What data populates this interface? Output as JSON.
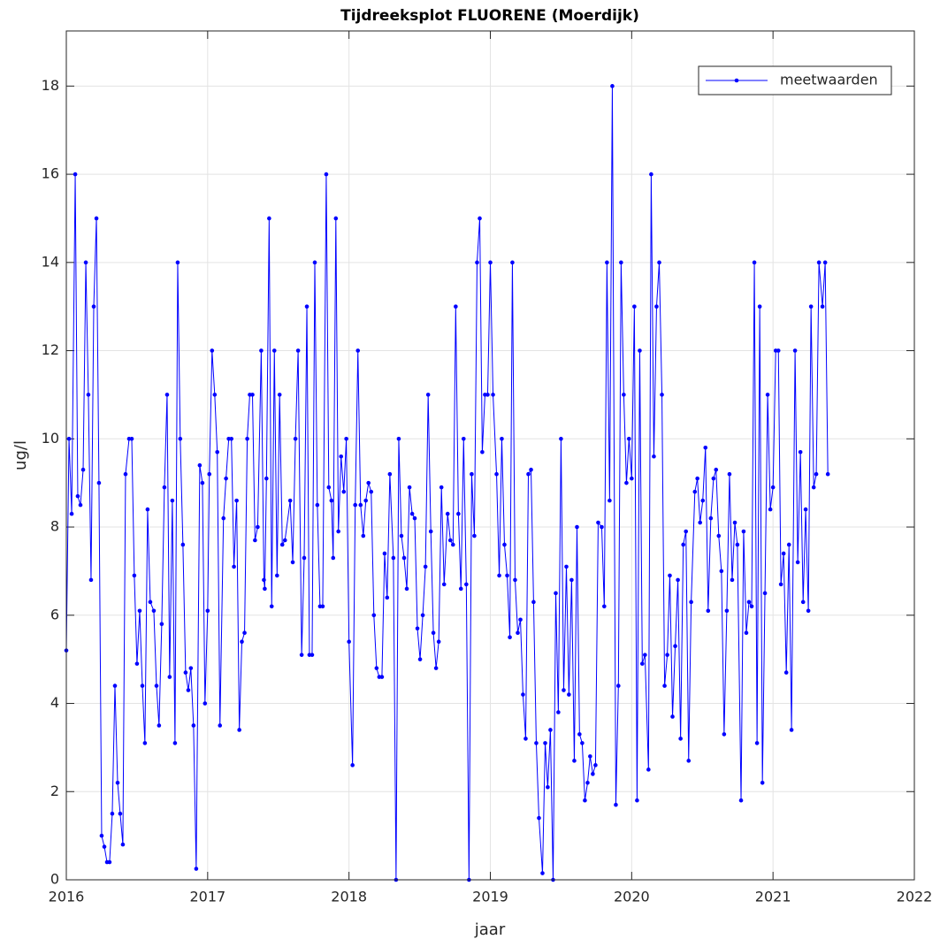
{
  "chart_data": {
    "type": "line",
    "title": "Tijdreeksplot FLUORENE (Moerdijk)",
    "x_label": "jaar",
    "y_label": "ug/l",
    "xlim": [
      2016,
      2022
    ],
    "xticks": [
      2016,
      2017,
      2018,
      2019,
      2020,
      2021,
      2022
    ],
    "ylim": [
      0,
      19.25
    ],
    "yticks": [
      0,
      2,
      4,
      6,
      8,
      10,
      12,
      14,
      16,
      18
    ],
    "grid": true,
    "legend": "top-right",
    "x": [
      2016,
      2016.019,
      2016.038,
      2016.063,
      2016.081,
      2016.1,
      2016.119,
      2016.138,
      2016.156,
      2016.175,
      2016.194,
      2016.213,
      2016.231,
      2016.25,
      2016.269,
      2016.288,
      2016.306,
      2016.325,
      2016.344,
      2016.363,
      2016.381,
      2016.4,
      2016.419,
      2016.444,
      2016.463,
      2016.481,
      2016.5,
      2016.519,
      2016.538,
      2016.556,
      2016.575,
      2016.594,
      2016.619,
      2016.638,
      2016.656,
      2016.675,
      2016.694,
      2016.713,
      2016.731,
      2016.75,
      2016.769,
      2016.788,
      2016.806,
      2016.825,
      2016.844,
      2016.863,
      2016.881,
      2016.9,
      2016.919,
      2016.944,
      2016.963,
      2016.981,
      2017,
      2017.012,
      2017.031,
      2017.05,
      2017.068,
      2017.087,
      2017.112,
      2017.13,
      2017.149,
      2017.168,
      2017.186,
      2017.205,
      2017.224,
      2017.242,
      2017.261,
      2017.28,
      2017.298,
      2017.317,
      2017.335,
      2017.354,
      2017.379,
      2017.398,
      2017.404,
      2017.416,
      2017.435,
      2017.453,
      2017.472,
      2017.491,
      2017.509,
      2017.528,
      2017.547,
      2017.584,
      2017.602,
      2017.621,
      2017.64,
      2017.665,
      2017.683,
      2017.702,
      2017.72,
      2017.739,
      2017.758,
      2017.776,
      2017.795,
      2017.814,
      2017.839,
      2017.857,
      2017.876,
      2017.888,
      2017.907,
      2017.925,
      2017.944,
      2017.963,
      2017.981,
      2018,
      2018.025,
      2018.044,
      2018.063,
      2018.082,
      2018.101,
      2018.119,
      2018.138,
      2018.157,
      2018.176,
      2018.195,
      2018.214,
      2018.233,
      2018.252,
      2018.27,
      2018.289,
      2018.314,
      2018.333,
      2018.352,
      2018.371,
      2018.39,
      2018.409,
      2018.428,
      2018.447,
      2018.465,
      2018.484,
      2018.503,
      2018.522,
      2018.541,
      2018.56,
      2018.579,
      2018.597,
      2018.616,
      2018.635,
      2018.654,
      2018.673,
      2018.698,
      2018.717,
      2018.736,
      2018.755,
      2018.774,
      2018.792,
      2018.811,
      2018.83,
      2018.849,
      2018.868,
      2018.887,
      2018.906,
      2018.925,
      2018.943,
      2018.962,
      2018.981,
      2019,
      2019.019,
      2019.044,
      2019.063,
      2019.081,
      2019.1,
      2019.119,
      2019.138,
      2019.156,
      2019.175,
      2019.194,
      2019.213,
      2019.231,
      2019.25,
      2019.269,
      2019.288,
      2019.306,
      2019.325,
      2019.344,
      2019.369,
      2019.388,
      2019.406,
      2019.425,
      2019.444,
      2019.463,
      2019.481,
      2019.5,
      2019.519,
      2019.538,
      2019.556,
      2019.575,
      2019.594,
      2019.613,
      2019.631,
      2019.65,
      2019.669,
      2019.688,
      2019.706,
      2019.725,
      2019.744,
      2019.763,
      2019.788,
      2019.806,
      2019.825,
      2019.844,
      2019.863,
      2019.888,
      2019.906,
      2019.925,
      2019.944,
      2019.963,
      2019.981,
      2020,
      2020.019,
      2020.038,
      2020.057,
      2020.075,
      2020.094,
      2020.119,
      2020.138,
      2020.157,
      2020.176,
      2020.195,
      2020.214,
      2020.233,
      2020.252,
      2020.27,
      2020.289,
      2020.308,
      2020.327,
      2020.346,
      2020.365,
      2020.384,
      2020.403,
      2020.421,
      2020.447,
      2020.465,
      2020.484,
      2020.503,
      2020.522,
      2020.541,
      2020.56,
      2020.579,
      2020.597,
      2020.616,
      2020.635,
      2020.654,
      2020.673,
      2020.692,
      2020.711,
      2020.73,
      2020.748,
      2020.774,
      2020.792,
      2020.811,
      2020.83,
      2020.849,
      2020.868,
      2020.887,
      2020.906,
      2020.925,
      2020.943,
      2020.962,
      2020.981,
      2021,
      2021.019,
      2021.038,
      2021.056,
      2021.075,
      2021.094,
      2021.113,
      2021.131,
      2021.156,
      2021.175,
      2021.194,
      2021.213,
      2021.231,
      2021.25,
      2021.269,
      2021.288,
      2021.306,
      2021.325,
      2021.35,
      2021.369,
      2021.388
    ],
    "series": [
      {
        "name": "meetwaarden",
        "color": "#0000ff",
        "values": [
          5.2,
          10,
          8.3,
          16,
          8.7,
          8.5,
          9.3,
          14,
          11,
          6.8,
          13,
          15,
          9,
          1,
          0.75,
          0.4,
          0.4,
          1.5,
          4.4,
          2.2,
          1.5,
          0.8,
          9.2,
          10,
          10,
          6.9,
          4.9,
          6.1,
          4.4,
          3.1,
          8.4,
          6.3,
          6.1,
          4.4,
          3.5,
          5.8,
          8.9,
          11,
          4.6,
          8.6,
          3.1,
          14,
          10,
          7.6,
          4.7,
          4.3,
          4.8,
          3.5,
          0.25,
          9.4,
          9,
          4,
          6.1,
          9.2,
          12,
          11,
          9.7,
          3.5,
          8.2,
          9.1,
          10,
          10,
          7.1,
          8.6,
          3.4,
          5.4,
          5.6,
          10,
          11,
          11,
          7.7,
          8,
          12,
          6.8,
          6.6,
          9.1,
          15,
          6.2,
          12,
          6.9,
          11,
          7.6,
          7.7,
          8.6,
          7.2,
          10,
          12,
          5.1,
          7.3,
          13,
          5.1,
          5.1,
          14,
          8.5,
          6.2,
          6.2,
          16,
          8.9,
          8.6,
          7.3,
          15,
          7.9,
          9.6,
          8.8,
          10,
          5.4,
          2.6,
          8.5,
          12,
          8.5,
          7.8,
          8.6,
          9,
          8.8,
          6,
          4.8,
          4.6,
          4.6,
          7.4,
          6.4,
          9.2,
          7.3,
          0,
          10,
          7.8,
          7.3,
          6.6,
          8.9,
          8.3,
          8.2,
          5.7,
          5,
          6,
          7.1,
          11,
          7.9,
          5.6,
          4.8,
          5.4,
          8.9,
          6.7,
          8.3,
          7.7,
          7.6,
          13,
          8.3,
          6.6,
          10,
          6.7,
          0,
          9.2,
          7.8,
          14,
          15,
          9.7,
          11,
          11,
          14,
          11,
          9.2,
          6.9,
          10,
          7.6,
          6.9,
          5.5,
          14,
          6.8,
          5.6,
          5.9,
          4.2,
          3.2,
          9.2,
          9.3,
          6.3,
          3.1,
          1.4,
          0.15,
          3.1,
          2.1,
          3.4,
          0,
          6.5,
          3.8,
          10,
          4.3,
          7.1,
          4.2,
          6.8,
          2.7,
          8,
          3.3,
          3.1,
          1.8,
          2.2,
          2.8,
          2.4,
          2.6,
          8.1,
          8,
          6.2,
          14,
          8.6,
          18,
          1.7,
          4.4,
          14,
          11,
          9,
          10,
          9.1,
          13,
          1.8,
          12,
          4.9,
          5.1,
          2.5,
          16,
          9.6,
          13,
          14,
          11,
          4.4,
          5.1,
          6.9,
          3.7,
          5.3,
          6.8,
          3.2,
          7.6,
          7.9,
          2.7,
          6.3,
          8.8,
          9.1,
          8.1,
          8.6,
          9.8,
          6.1,
          8.2,
          9.1,
          9.3,
          7.8,
          7,
          3.3,
          6.1,
          9.2,
          6.8,
          8.1,
          7.6,
          1.8,
          7.9,
          5.6,
          6.3,
          6.2,
          14,
          3.1,
          13,
          2.2,
          6.5,
          11,
          8.4,
          8.9,
          12,
          12,
          6.7,
          7.4,
          4.7,
          7.6,
          3.4,
          12,
          7.2,
          9.7,
          6.3,
          8.4,
          6.1,
          13,
          8.9,
          9.2,
          14,
          13,
          14,
          9.2
        ]
      }
    ]
  }
}
